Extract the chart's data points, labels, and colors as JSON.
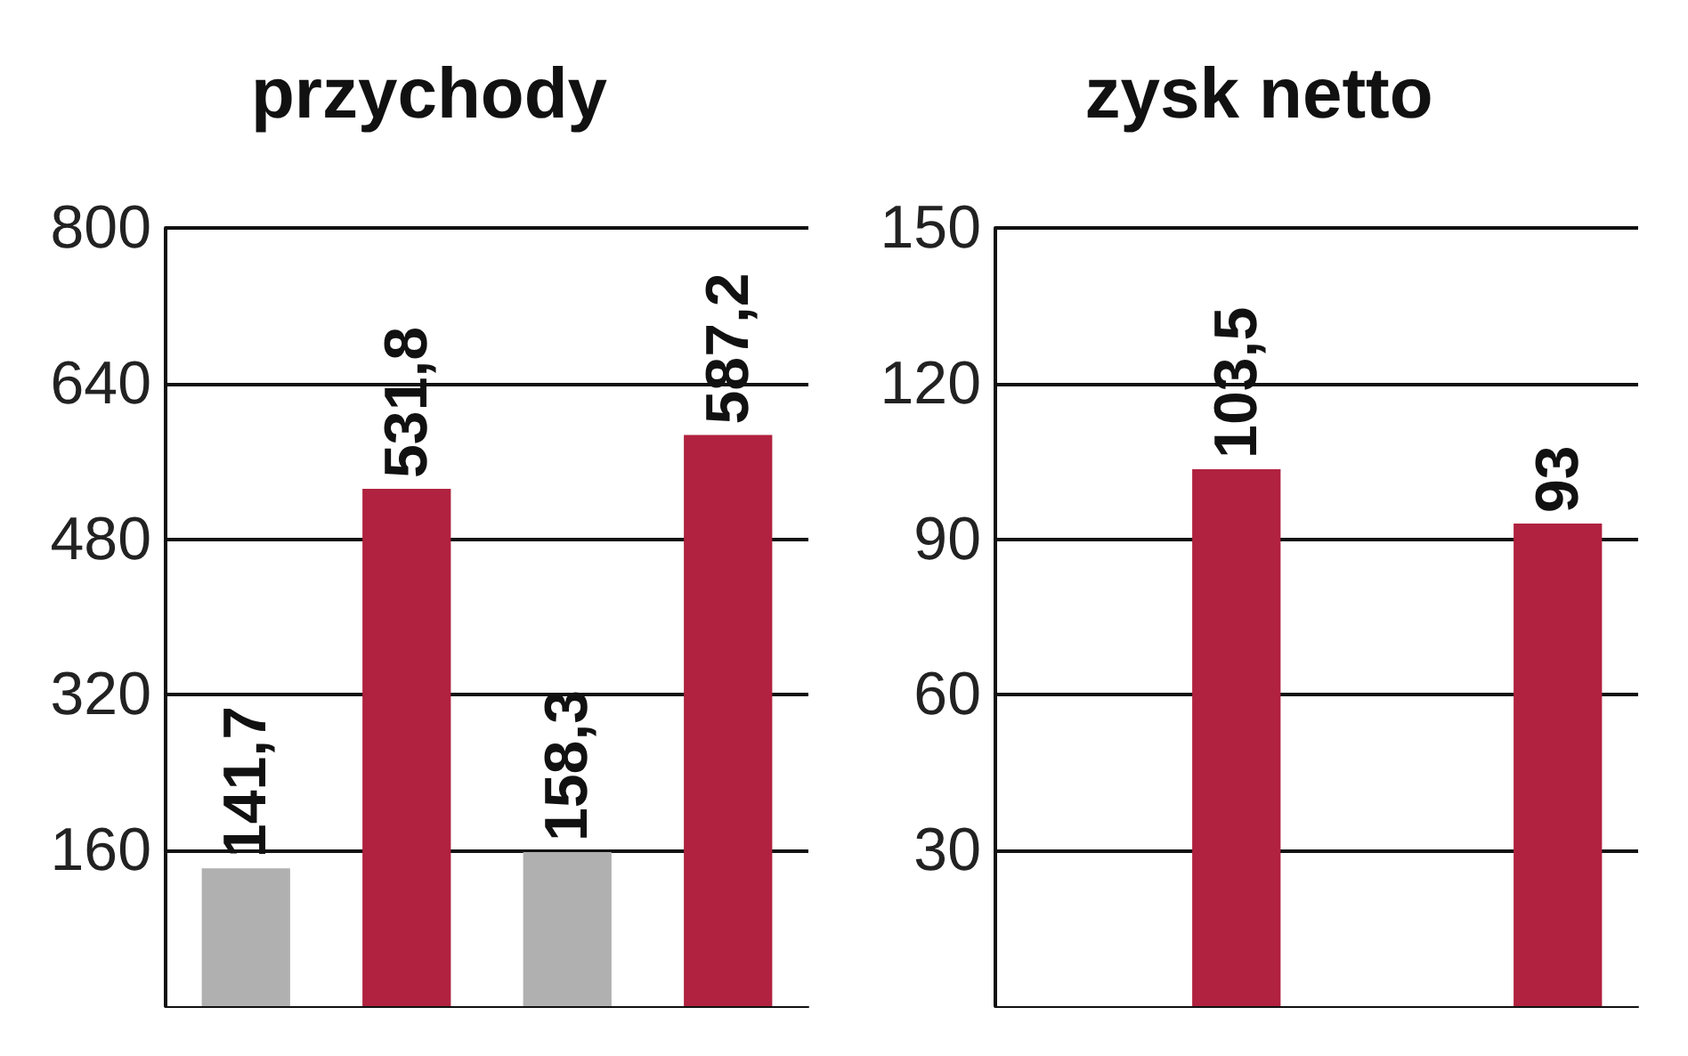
{
  "chart_data": [
    {
      "type": "bar",
      "title": "przychody",
      "categories": [
        null,
        null,
        null,
        null
      ],
      "values": [
        141.7,
        531.8,
        158.3,
        587.2
      ],
      "value_labels": [
        "141,7",
        "531,8",
        "158,3",
        "587,2"
      ],
      "colors": [
        "#b0b0b0",
        "#b0223f",
        "#b0b0b0",
        "#b0223f"
      ],
      "ylim": [
        0,
        800
      ],
      "yticks": [
        160,
        320,
        480,
        640,
        800
      ],
      "grid": "y"
    },
    {
      "type": "bar",
      "title": "zysk netto",
      "categories": [
        null,
        null,
        null,
        null
      ],
      "values": [
        null,
        103.5,
        null,
        93
      ],
      "value_labels": [
        null,
        "103,5",
        null,
        "93"
      ],
      "colors": [
        "#b0b0b0",
        "#b0223f",
        "#b0b0b0",
        "#b0223f"
      ],
      "ylim": [
        0,
        150
      ],
      "yticks": [
        30,
        60,
        90,
        120,
        150
      ],
      "grid": "y"
    }
  ]
}
